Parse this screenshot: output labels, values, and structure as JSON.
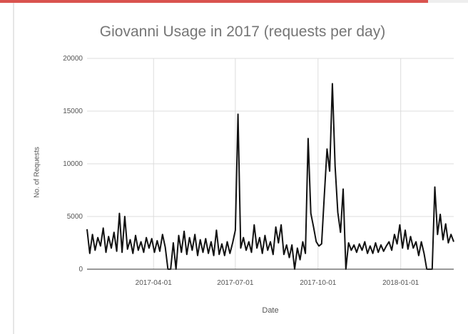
{
  "chart_data": {
    "type": "line",
    "title": "Giovanni Usage in 2017 (requests per day)",
    "xlabel": "Date",
    "ylabel": "No. of Requests",
    "ylim": [
      0,
      20000
    ],
    "xlim": [
      "2017-01-17",
      "2018-03-01"
    ],
    "y_ticks": [
      0,
      5000,
      10000,
      15000,
      20000
    ],
    "x_ticks": [
      "2017-04-01",
      "2017-07-01",
      "2017-10-01",
      "2018-01-01"
    ],
    "grid": true,
    "legend": "none",
    "series": [
      {
        "color": "#111111",
        "x": [
          "2017-01-17",
          "2017-01-20",
          "2017-01-23",
          "2017-01-26",
          "2017-01-29",
          "2017-02-01",
          "2017-02-04",
          "2017-02-07",
          "2017-02-10",
          "2017-02-13",
          "2017-02-16",
          "2017-02-19",
          "2017-02-22",
          "2017-02-25",
          "2017-02-28",
          "2017-03-03",
          "2017-03-06",
          "2017-03-09",
          "2017-03-12",
          "2017-03-15",
          "2017-03-18",
          "2017-03-21",
          "2017-03-24",
          "2017-03-27",
          "2017-03-30",
          "2017-04-02",
          "2017-04-05",
          "2017-04-08",
          "2017-04-11",
          "2017-04-14",
          "2017-04-17",
          "2017-04-20",
          "2017-04-23",
          "2017-04-26",
          "2017-04-29",
          "2017-05-02",
          "2017-05-05",
          "2017-05-08",
          "2017-05-11",
          "2017-05-14",
          "2017-05-17",
          "2017-05-20",
          "2017-05-23",
          "2017-05-26",
          "2017-05-29",
          "2017-06-01",
          "2017-06-04",
          "2017-06-07",
          "2017-06-10",
          "2017-06-13",
          "2017-06-16",
          "2017-06-19",
          "2017-06-22",
          "2017-06-25",
          "2017-06-28",
          "2017-07-01",
          "2017-07-04",
          "2017-07-07",
          "2017-07-10",
          "2017-07-13",
          "2017-07-16",
          "2017-07-19",
          "2017-07-22",
          "2017-07-25",
          "2017-07-28",
          "2017-07-31",
          "2017-08-03",
          "2017-08-06",
          "2017-08-09",
          "2017-08-12",
          "2017-08-15",
          "2017-08-18",
          "2017-08-21",
          "2017-08-24",
          "2017-08-27",
          "2017-08-30",
          "2017-09-02",
          "2017-09-05",
          "2017-09-08",
          "2017-09-11",
          "2017-09-14",
          "2017-09-17",
          "2017-09-20",
          "2017-09-23",
          "2017-09-26",
          "2017-09-29",
          "2017-10-02",
          "2017-10-05",
          "2017-10-08",
          "2017-10-11",
          "2017-10-14",
          "2017-10-17",
          "2017-10-20",
          "2017-10-23",
          "2017-10-26",
          "2017-10-29",
          "2017-11-01",
          "2017-11-04",
          "2017-11-07",
          "2017-11-10",
          "2017-11-13",
          "2017-11-16",
          "2017-11-19",
          "2017-11-22",
          "2017-11-25",
          "2017-11-28",
          "2017-12-01",
          "2017-12-04",
          "2017-12-07",
          "2017-12-10",
          "2017-12-13",
          "2017-12-16",
          "2017-12-19",
          "2017-12-22",
          "2017-12-25",
          "2017-12-28",
          "2017-12-31",
          "2018-01-03",
          "2018-01-06",
          "2018-01-09",
          "2018-01-12",
          "2018-01-15",
          "2018-01-18",
          "2018-01-21",
          "2018-01-24",
          "2018-01-27",
          "2018-01-30",
          "2018-02-02",
          "2018-02-05",
          "2018-02-08",
          "2018-02-11",
          "2018-02-14",
          "2018-02-17",
          "2018-02-20",
          "2018-02-23",
          "2018-02-26",
          "2018-03-01"
        ],
        "values": [
          3800,
          1500,
          3300,
          1800,
          3000,
          2200,
          3900,
          1600,
          3100,
          2000,
          3500,
          1700,
          5300,
          1600,
          5000,
          1900,
          2800,
          1500,
          3200,
          1800,
          2600,
          1600,
          3000,
          2000,
          2900,
          1600,
          2700,
          1700,
          3300,
          2100,
          0,
          0,
          2500,
          0,
          3200,
          1600,
          3600,
          1400,
          3000,
          1800,
          3300,
          1300,
          2800,
          1600,
          2900,
          1500,
          2600,
          1300,
          3700,
          1400,
          2400,
          1300,
          2600,
          1500,
          2500,
          3700,
          14700,
          2000,
          3000,
          1800,
          2600,
          1600,
          4200,
          2000,
          3000,
          1500,
          3200,
          1800,
          2600,
          1400,
          4000,
          2500,
          4200,
          1400,
          2300,
          1100,
          2300,
          0,
          2000,
          900,
          2600,
          1500,
          12400,
          5300,
          4000,
          2600,
          2200,
          2400,
          7000,
          11400,
          9300,
          17600,
          9800,
          5400,
          3500,
          7600,
          0,
          2500,
          1800,
          2300,
          1600,
          2400,
          1800,
          2600,
          1500,
          2200,
          1500,
          2500,
          1600,
          2300,
          1700,
          2200,
          2600,
          1800,
          3300,
          2400,
          4200,
          2000,
          3700,
          1900,
          3100,
          2000,
          2600,
          1300,
          2600,
          1500,
          0,
          0,
          0,
          7800,
          3300,
          5200,
          2800,
          4300,
          2500,
          3300,
          2600
        ]
      }
    ]
  }
}
